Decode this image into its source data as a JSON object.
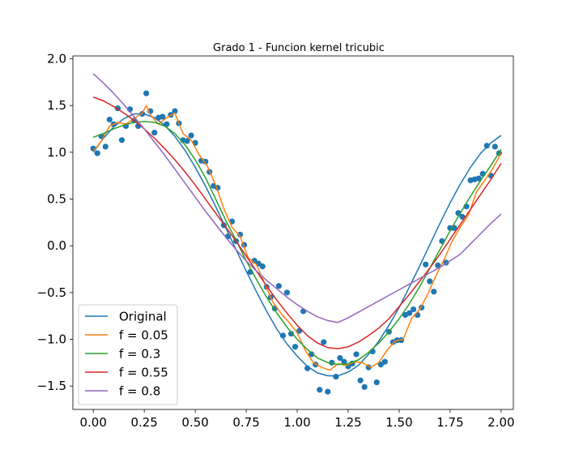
{
  "chart_data": {
    "type": "line",
    "title": "Grado 1 - Funcion kernel tricubic",
    "xlabel": "",
    "ylabel": "",
    "xlim": [
      -0.1,
      2.06
    ],
    "ylim": [
      -1.75,
      2.03
    ],
    "xticks": [
      0.0,
      0.25,
      0.5,
      0.75,
      1.0,
      1.25,
      1.5,
      1.75,
      2.0
    ],
    "xtick_labels": [
      "0.00",
      "0.25",
      "0.50",
      "0.75",
      "1.00",
      "1.25",
      "1.50",
      "1.75",
      "2.00"
    ],
    "yticks": [
      -1.5,
      -1.0,
      -0.5,
      0.0,
      0.5,
      1.0,
      1.5,
      2.0
    ],
    "ytick_labels": [
      "−1.5",
      "−1.0",
      "−0.5",
      "0.0",
      "0.5",
      "1.0",
      "1.5",
      "2.0"
    ],
    "grid": false,
    "legend_position": "lower-left",
    "scatter": {
      "color": "#1f77b4",
      "x": [
        0.0,
        0.02,
        0.04,
        0.06,
        0.08,
        0.1,
        0.12,
        0.14,
        0.16,
        0.18,
        0.2,
        0.22,
        0.24,
        0.26,
        0.28,
        0.3,
        0.32,
        0.34,
        0.36,
        0.38,
        0.4,
        0.42,
        0.44,
        0.46,
        0.48,
        0.5,
        0.53,
        0.55,
        0.57,
        0.59,
        0.61,
        0.64,
        0.66,
        0.68,
        0.7,
        0.72,
        0.74,
        0.77,
        0.79,
        0.81,
        0.83,
        0.85,
        0.87,
        0.89,
        0.91,
        0.93,
        0.95,
        0.97,
        0.99,
        1.01,
        1.03,
        1.05,
        1.07,
        1.09,
        1.11,
        1.13,
        1.15,
        1.17,
        1.19,
        1.21,
        1.23,
        1.25,
        1.27,
        1.29,
        1.31,
        1.33,
        1.35,
        1.37,
        1.39,
        1.41,
        1.43,
        1.45,
        1.47,
        1.49,
        1.51,
        1.53,
        1.55,
        1.57,
        1.59,
        1.61,
        1.63,
        1.65,
        1.67,
        1.69,
        1.71,
        1.73,
        1.75,
        1.77,
        1.79,
        1.81,
        1.83,
        1.85,
        1.87,
        1.89,
        1.91,
        1.93,
        1.95,
        1.97,
        1.99
      ],
      "y": [
        1.04,
        0.99,
        1.17,
        1.06,
        1.35,
        1.3,
        1.47,
        1.13,
        1.28,
        1.46,
        1.34,
        1.28,
        1.41,
        1.63,
        1.44,
        1.21,
        1.37,
        1.38,
        1.3,
        1.4,
        1.44,
        1.31,
        1.13,
        1.12,
        1.18,
        1.1,
        0.91,
        0.9,
        0.79,
        0.64,
        0.62,
        0.22,
        0.1,
        0.26,
        0.05,
        0.12,
        0.01,
        -0.28,
        -0.16,
        -0.19,
        -0.22,
        -0.44,
        -0.55,
        -0.67,
        -0.43,
        -0.96,
        -0.5,
        -0.94,
        -1.08,
        -0.91,
        -0.7,
        -1.31,
        -1.16,
        -1.27,
        -1.54,
        -1.03,
        -1.56,
        -1.25,
        -1.4,
        -1.2,
        -1.24,
        -1.29,
        -1.26,
        -1.16,
        -1.44,
        -1.51,
        -1.3,
        -1.13,
        -1.46,
        -1.27,
        -1.24,
        -0.92,
        -1.03,
        -1.01,
        -1.01,
        -0.74,
        -0.72,
        -0.68,
        -0.74,
        -0.66,
        -0.2,
        -0.38,
        -0.49,
        -0.21,
        0.05,
        -0.18,
        0.19,
        0.19,
        0.35,
        0.31,
        0.42,
        0.7,
        0.71,
        0.72,
        0.77,
        1.07,
        0.75,
        1.06,
        0.99
      ]
    },
    "series": [
      {
        "name": "Original",
        "color": "#1f77b4",
        "x": [
          0.0,
          0.05,
          0.1,
          0.15,
          0.2,
          0.25,
          0.3,
          0.35,
          0.4,
          0.45,
          0.5,
          0.55,
          0.6,
          0.65,
          0.7,
          0.75,
          0.8,
          0.85,
          0.9,
          0.95,
          1.0,
          1.05,
          1.1,
          1.15,
          1.2,
          1.25,
          1.3,
          1.35,
          1.4,
          1.45,
          1.5,
          1.55,
          1.6,
          1.65,
          1.7,
          1.75,
          1.8,
          1.85,
          1.9,
          1.95,
          2.0
        ],
        "y": [
          1.0,
          1.15,
          1.27,
          1.36,
          1.41,
          1.41,
          1.37,
          1.29,
          1.17,
          1.02,
          0.84,
          0.64,
          0.42,
          0.19,
          -0.04,
          -0.27,
          -0.49,
          -0.7,
          -0.89,
          -1.05,
          -1.18,
          -1.29,
          -1.36,
          -1.39,
          -1.39,
          -1.35,
          -1.28,
          -1.16,
          -1.02,
          -0.85,
          -0.66,
          -0.44,
          -0.22,
          0.01,
          0.24,
          0.46,
          0.66,
          0.84,
          0.99,
          1.1,
          1.18
        ]
      },
      {
        "name": "f = 0.05",
        "color": "#ff7f0e",
        "x": [
          0.0,
          0.04,
          0.08,
          0.12,
          0.16,
          0.2,
          0.24,
          0.26,
          0.28,
          0.32,
          0.36,
          0.4,
          0.44,
          0.48,
          0.52,
          0.56,
          0.6,
          0.64,
          0.68,
          0.72,
          0.76,
          0.8,
          0.84,
          0.88,
          0.92,
          0.96,
          1.0,
          1.04,
          1.08,
          1.12,
          1.16,
          1.2,
          1.24,
          1.28,
          1.32,
          1.36,
          1.4,
          1.44,
          1.48,
          1.52,
          1.56,
          1.6,
          1.64,
          1.68,
          1.72,
          1.76,
          1.8,
          1.84,
          1.88,
          1.92,
          1.96,
          2.0
        ],
        "y": [
          1.01,
          1.12,
          1.28,
          1.32,
          1.3,
          1.36,
          1.42,
          1.5,
          1.4,
          1.3,
          1.37,
          1.42,
          1.2,
          1.13,
          0.97,
          0.85,
          0.65,
          0.4,
          0.2,
          0.1,
          -0.13,
          -0.2,
          -0.4,
          -0.6,
          -0.72,
          -0.82,
          -0.93,
          -1.12,
          -1.25,
          -1.3,
          -1.33,
          -1.26,
          -1.28,
          -1.24,
          -1.25,
          -1.3,
          -1.25,
          -1.12,
          -1.02,
          -1.0,
          -0.78,
          -0.68,
          -0.52,
          -0.32,
          -0.15,
          0.05,
          0.2,
          0.33,
          0.58,
          0.7,
          0.83,
          0.99
        ]
      },
      {
        "name": "f = 0.3",
        "color": "#2ca02c",
        "x": [
          0.0,
          0.05,
          0.1,
          0.15,
          0.2,
          0.25,
          0.3,
          0.35,
          0.4,
          0.45,
          0.5,
          0.55,
          0.6,
          0.65,
          0.7,
          0.75,
          0.8,
          0.85,
          0.9,
          0.95,
          1.0,
          1.05,
          1.1,
          1.15,
          1.2,
          1.25,
          1.3,
          1.35,
          1.4,
          1.45,
          1.5,
          1.55,
          1.6,
          1.65,
          1.7,
          1.75,
          1.8,
          1.85,
          1.9,
          1.95,
          2.0
        ],
        "y": [
          1.16,
          1.2,
          1.25,
          1.29,
          1.32,
          1.33,
          1.32,
          1.28,
          1.2,
          1.08,
          0.92,
          0.73,
          0.5,
          0.27,
          0.06,
          -0.16,
          -0.36,
          -0.55,
          -0.72,
          -0.87,
          -1.0,
          -1.11,
          -1.2,
          -1.25,
          -1.27,
          -1.26,
          -1.22,
          -1.14,
          -1.04,
          -0.92,
          -0.78,
          -0.62,
          -0.44,
          -0.24,
          -0.04,
          0.16,
          0.35,
          0.53,
          0.7,
          0.86,
          1.03
        ]
      },
      {
        "name": "f = 0.55",
        "color": "#d62728",
        "x": [
          0.0,
          0.05,
          0.1,
          0.15,
          0.2,
          0.25,
          0.3,
          0.35,
          0.4,
          0.45,
          0.5,
          0.55,
          0.6,
          0.65,
          0.7,
          0.75,
          0.8,
          0.85,
          0.9,
          0.95,
          1.0,
          1.05,
          1.1,
          1.15,
          1.2,
          1.25,
          1.3,
          1.35,
          1.4,
          1.45,
          1.5,
          1.55,
          1.6,
          1.65,
          1.7,
          1.75,
          1.8,
          1.85,
          1.9,
          1.95,
          2.0
        ],
        "y": [
          1.59,
          1.55,
          1.49,
          1.42,
          1.34,
          1.25,
          1.15,
          1.04,
          0.92,
          0.79,
          0.65,
          0.5,
          0.35,
          0.2,
          0.05,
          -0.11,
          -0.27,
          -0.43,
          -0.58,
          -0.72,
          -0.85,
          -0.96,
          -1.04,
          -1.09,
          -1.1,
          -1.08,
          -1.03,
          -0.96,
          -0.88,
          -0.78,
          -0.65,
          -0.52,
          -0.38,
          -0.24,
          -0.09,
          0.07,
          0.23,
          0.39,
          0.55,
          0.71,
          0.88
        ]
      },
      {
        "name": "f = 0.8",
        "color": "#9467bd",
        "x": [
          0.0,
          0.05,
          0.1,
          0.15,
          0.2,
          0.25,
          0.3,
          0.35,
          0.4,
          0.45,
          0.5,
          0.55,
          0.6,
          0.65,
          0.7,
          0.75,
          0.8,
          0.85,
          0.9,
          0.95,
          1.0,
          1.05,
          1.1,
          1.15,
          1.2,
          1.25,
          1.3,
          1.35,
          1.4,
          1.45,
          1.5,
          1.55,
          1.6,
          1.65,
          1.7,
          1.75,
          1.8,
          1.85,
          1.9,
          1.95,
          2.0
        ],
        "y": [
          1.84,
          1.74,
          1.63,
          1.51,
          1.38,
          1.25,
          1.11,
          0.97,
          0.82,
          0.67,
          0.52,
          0.37,
          0.23,
          0.09,
          -0.04,
          -0.16,
          -0.27,
          -0.37,
          -0.46,
          -0.55,
          -0.63,
          -0.7,
          -0.76,
          -0.8,
          -0.82,
          -0.77,
          -0.71,
          -0.65,
          -0.59,
          -0.53,
          -0.47,
          -0.41,
          -0.35,
          -0.29,
          -0.23,
          -0.16,
          -0.09,
          0.02,
          0.13,
          0.24,
          0.34
        ]
      }
    ]
  }
}
